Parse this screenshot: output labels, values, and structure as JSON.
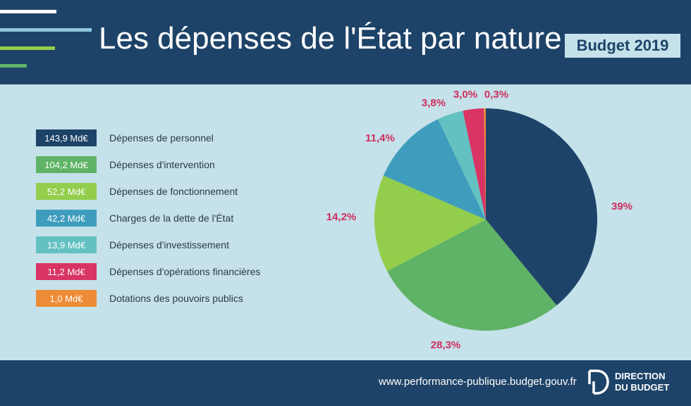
{
  "header": {
    "title": "Les dépenses de l'État par nature",
    "badge": "Budget 2019"
  },
  "footer": {
    "url": "www.performance-publique.budget.gouv.fr",
    "org_line1": "DIRECTION",
    "org_line2": "DU BUDGET"
  },
  "chart_data": {
    "type": "pie",
    "title": "Les dépenses de l'État par nature",
    "slices": [
      {
        "label": "Dépenses de personnel",
        "amount": "143,9 Md€",
        "value": 143.9,
        "percent_label": "39%",
        "percent": 39.0,
        "color": "#1e4368"
      },
      {
        "label": "Dépenses d'intervention",
        "amount": "104,2 Md€",
        "value": 104.2,
        "percent_label": "28,3%",
        "percent": 28.3,
        "color": "#5fb366"
      },
      {
        "label": "Dépenses de fonctionnement",
        "amount": "52,2 Md€",
        "value": 52.2,
        "percent_label": "14,2%",
        "percent": 14.2,
        "color": "#93cd4c"
      },
      {
        "label": "Charges de la dette de l'État",
        "amount": "42,2 Md€",
        "value": 42.2,
        "percent_label": "11,4%",
        "percent": 11.4,
        "color": "#3e9dbc"
      },
      {
        "label": "Dépenses d'investissement",
        "amount": "13,9 Md€",
        "value": 13.9,
        "percent_label": "3,8%",
        "percent": 3.8,
        "color": "#63c1c1"
      },
      {
        "label": "Dépenses d'opérations financières",
        "amount": "11,2 Md€",
        "value": 11.2,
        "percent_label": "3,0%",
        "percent": 3.0,
        "color": "#d83464"
      },
      {
        "label": "Dotations des pouvoirs publics",
        "amount": "1,0 Md€",
        "value": 1.0,
        "percent_label": "0,3%",
        "percent": 0.3,
        "color": "#ee8b36"
      }
    ],
    "percent_label_color": "#cf2e5e",
    "legend_position": "left"
  }
}
